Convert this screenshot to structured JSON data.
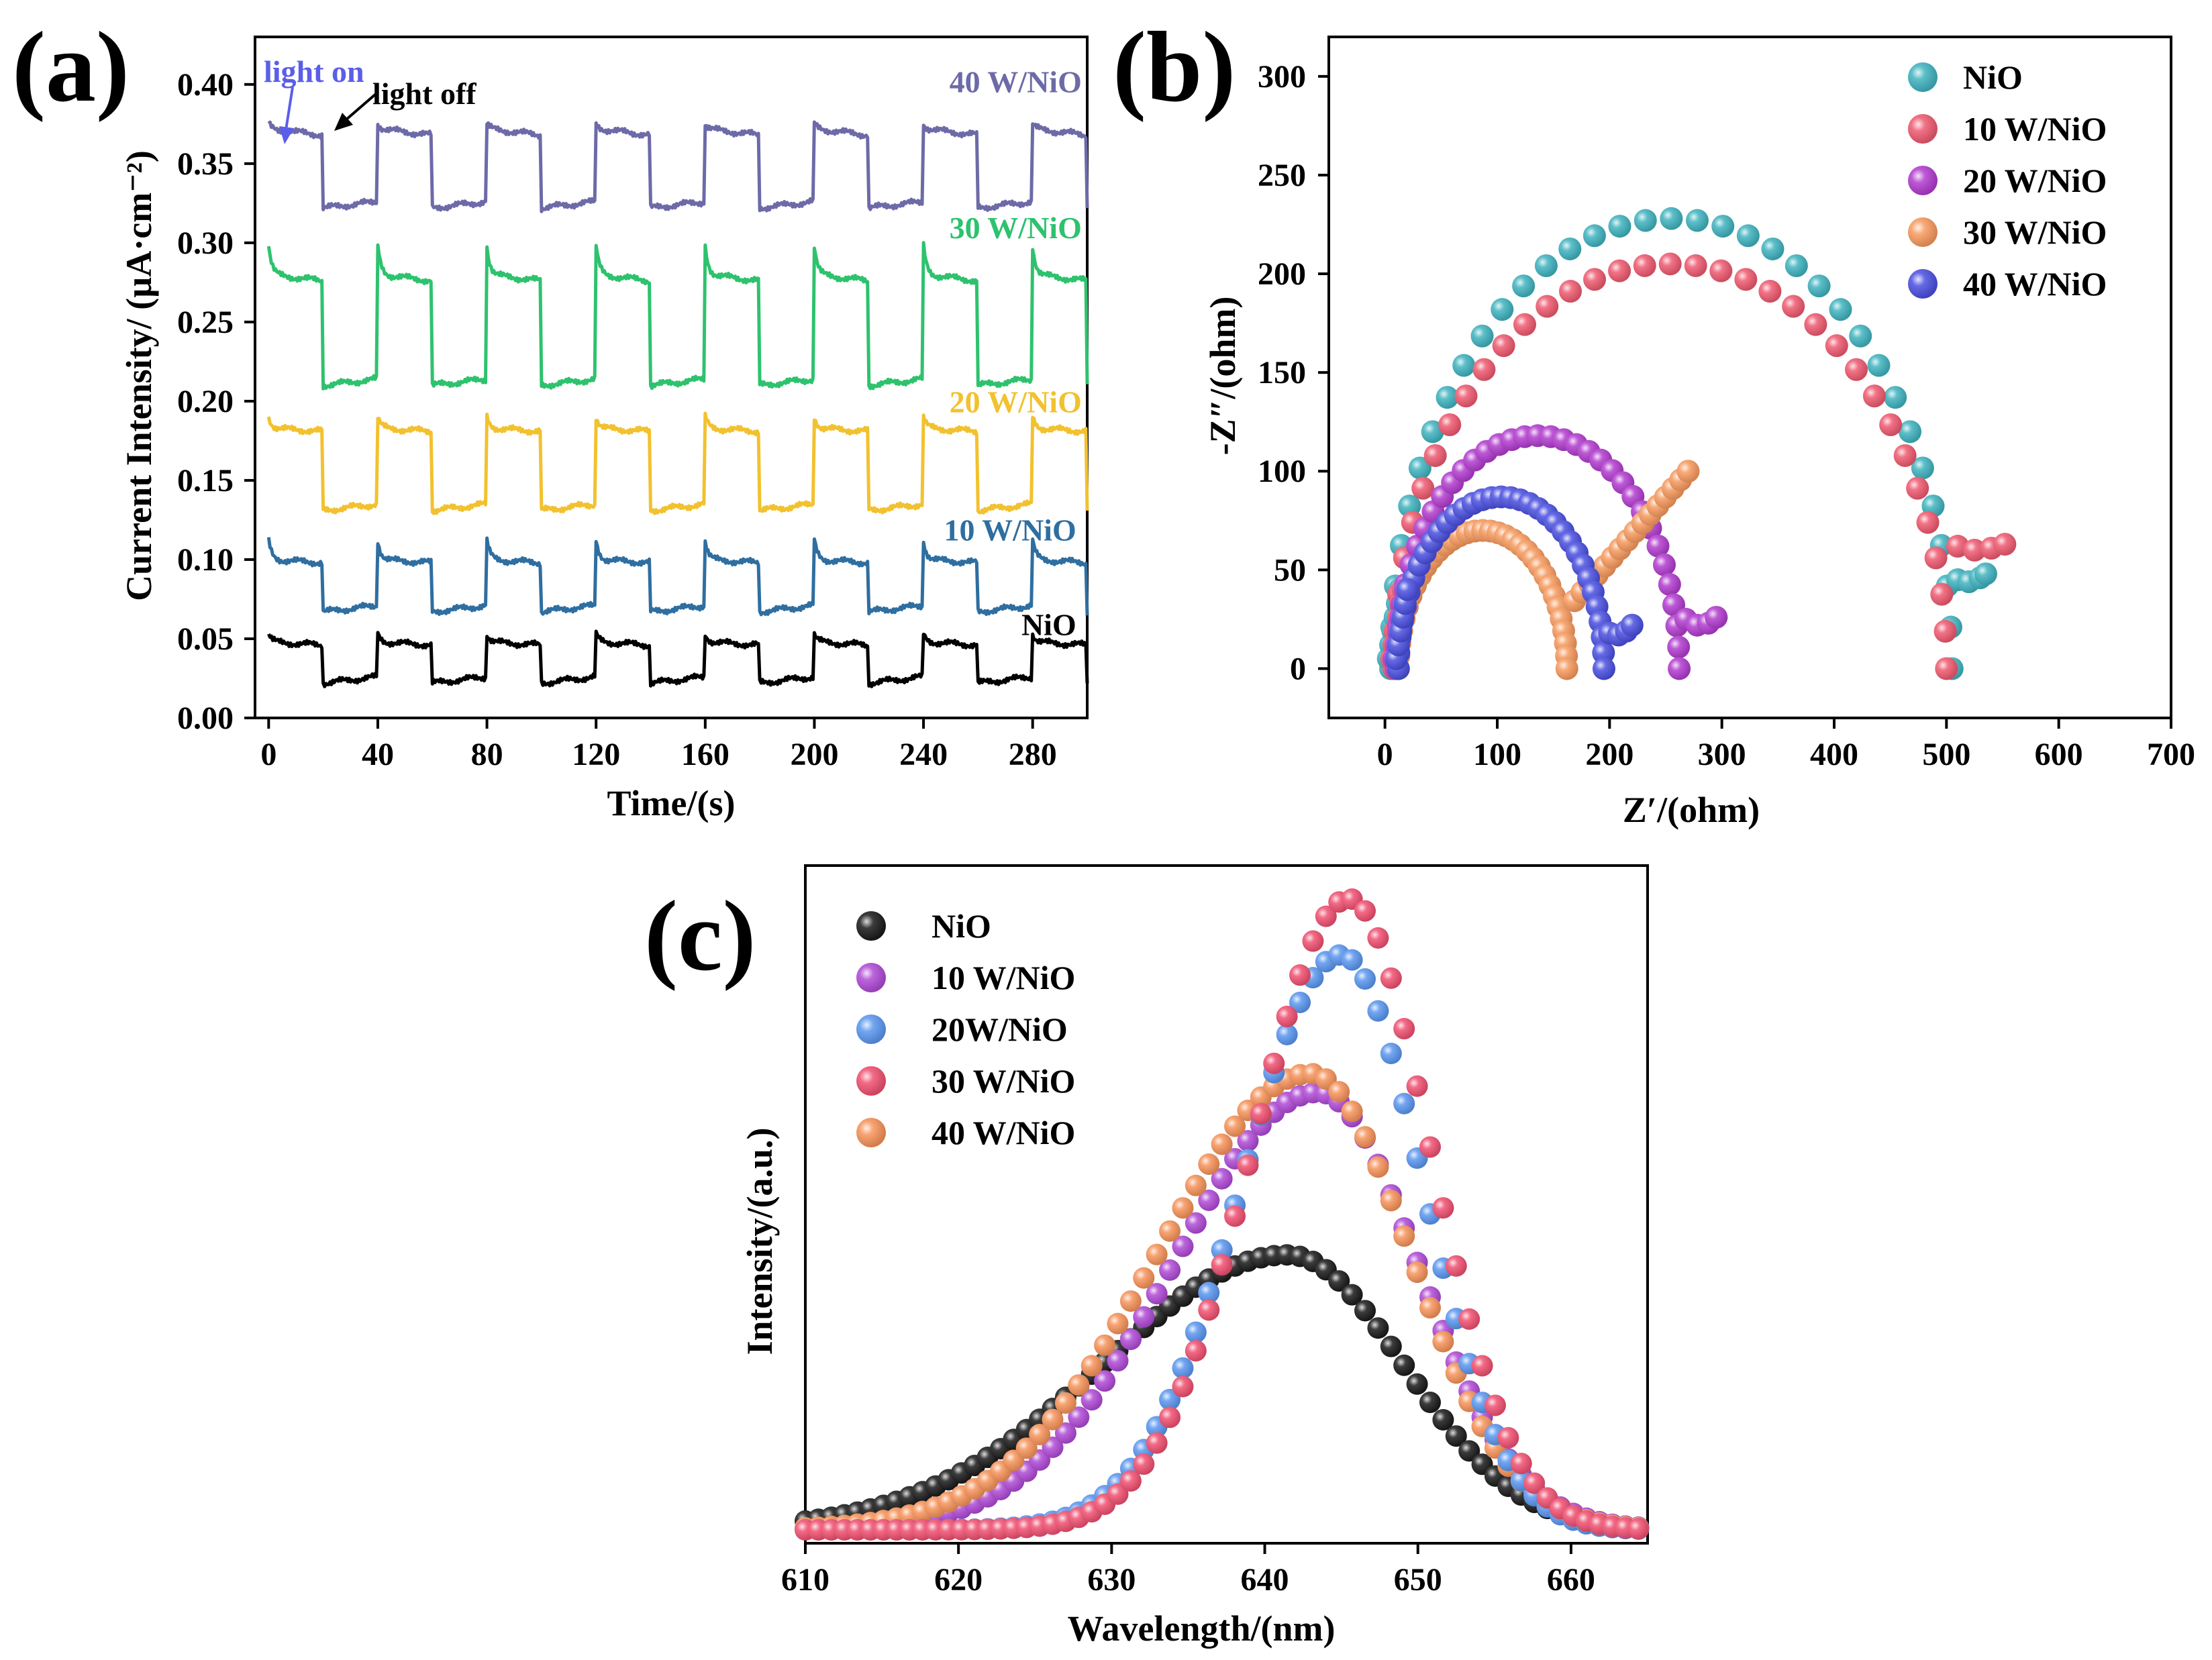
{
  "colors": {
    "a": {
      "NiO": "#000000",
      "10 W/NiO": "#2f6ea0",
      "20 W/NiO": "#f2c12e",
      "30 W/NiO": "#2ec26e",
      "40 W/NiO": "#6d6aa8"
    },
    "b": {
      "NiO": "#3fb3bf",
      "10 W/NiO": "#ef5a70",
      "20 W/NiO": "#b23ccf",
      "30 W/NiO": "#f79a5e",
      "40 W/NiO": "#4a4fe0"
    },
    "c": {
      "NiO": "#1a1a1a",
      "10 W/NiO": "#b04ad6",
      "20W/NiO": "#5b97f0",
      "30 W/NiO": "#f05070",
      "40 W/NiO": "#f7935a"
    }
  },
  "chart_data": [
    {
      "type": "line",
      "panel": "(a)",
      "xlabel": "Time/(s)",
      "ylabel": "Current Intensity/ (µA·cm⁻²)",
      "xlim": [
        -5,
        300
      ],
      "ylim": [
        0,
        0.43
      ],
      "xticks": [
        0,
        40,
        80,
        120,
        160,
        200,
        240,
        280
      ],
      "yticks": [
        0.0,
        0.05,
        0.1,
        0.15,
        0.2,
        0.25,
        0.3,
        0.35,
        0.4
      ],
      "ytick_labels": [
        "0.00",
        "0.05",
        "0.10",
        "0.15",
        "0.20",
        "0.25",
        "0.30",
        "0.35",
        "0.40"
      ],
      "light_period_s": 40,
      "annotations": {
        "light_on": "light on",
        "light_off": "light off"
      },
      "series": [
        {
          "name": "NiO",
          "on": 0.048,
          "off": 0.022,
          "spike": 0.005,
          "label": "NiO"
        },
        {
          "name": "10 W/NiO",
          "on": 0.1,
          "off": 0.067,
          "spike": 0.012,
          "label": "10 W/NiO"
        },
        {
          "name": "20 W/NiO",
          "on": 0.183,
          "off": 0.131,
          "spike": 0.007,
          "label": "20 W/NiO"
        },
        {
          "name": "30 W/NiO",
          "on": 0.28,
          "off": 0.21,
          "spike": 0.018,
          "label": "30 W/NiO"
        },
        {
          "name": "40 W/NiO",
          "on": 0.372,
          "off": 0.322,
          "spike": 0.003,
          "label": "40 W/NiO"
        }
      ]
    },
    {
      "type": "scatter",
      "panel": "(b)",
      "xlabel": "Z′/(ohm)",
      "ylabel": "-Z″/(ohm)",
      "xlim": [
        -50,
        700
      ],
      "ylim": [
        -25,
        320
      ],
      "xticks": [
        0,
        100,
        200,
        300,
        400,
        500,
        600,
        700
      ],
      "yticks": [
        0,
        50,
        100,
        150,
        200,
        250,
        300
      ],
      "series": [
        {
          "name": "NiO",
          "arc_start": 5,
          "arc_end": 505,
          "arc_height": 228,
          "tail_x": [
            510,
            520,
            530,
            535
          ],
          "tail_y": [
            45,
            44,
            46,
            48
          ]
        },
        {
          "name": "10 W/NiO",
          "arc_start": 8,
          "arc_end": 500,
          "arc_height": 205,
          "tail_x": [
            510,
            525,
            540,
            552
          ],
          "tail_y": [
            62,
            60,
            61,
            63
          ]
        },
        {
          "name": "20 W/NiO",
          "arc_start": 10,
          "arc_end": 262,
          "arc_height": 118,
          "tail_x": [
            268,
            278,
            288,
            295
          ],
          "tail_y": [
            25,
            22,
            23,
            26
          ]
        },
        {
          "name": "30 W/NiO",
          "arc_start": 12,
          "arc_end": 162,
          "arc_height": 70,
          "line_end_x": 270,
          "line_end_y": 100
        },
        {
          "name": "40 W/NiO",
          "arc_start": 12,
          "arc_end": 195,
          "arc_height": 87,
          "tail_x": [
            200,
            208,
            215,
            220
          ],
          "tail_y": [
            18,
            17,
            19,
            22
          ]
        }
      ]
    },
    {
      "type": "scatter",
      "panel": "(c)",
      "xlabel": "Wavelength/(nm)",
      "ylabel": "Intensity/(a.u.)",
      "xlim": [
        610,
        665
      ],
      "ylim": [
        0,
        1.0
      ],
      "xticks": [
        610,
        620,
        630,
        640,
        650,
        660
      ],
      "series": [
        {
          "name": "NiO",
          "peak_nm": 641.5,
          "peak": 0.44,
          "sigma_l": 12,
          "sigma_r": 7.5
        },
        {
          "name": "10 W/NiO",
          "peak_nm": 643.5,
          "peak": 0.7,
          "sigma_l": 9.5,
          "sigma_r": 6.5
        },
        {
          "name": "20W/NiO",
          "peak_nm": 645.0,
          "peak": 0.92,
          "sigma_l": 6.5,
          "sigma_r": 5.3
        },
        {
          "name": "30 W/NiO",
          "peak_nm": 645.5,
          "peak": 1.01,
          "sigma_l": 6.3,
          "sigma_r": 5.3
        },
        {
          "name": "40 W/NiO",
          "peak_nm": 643.0,
          "peak": 0.73,
          "sigma_l": 10.0,
          "sigma_r": 6.5
        }
      ]
    }
  ]
}
